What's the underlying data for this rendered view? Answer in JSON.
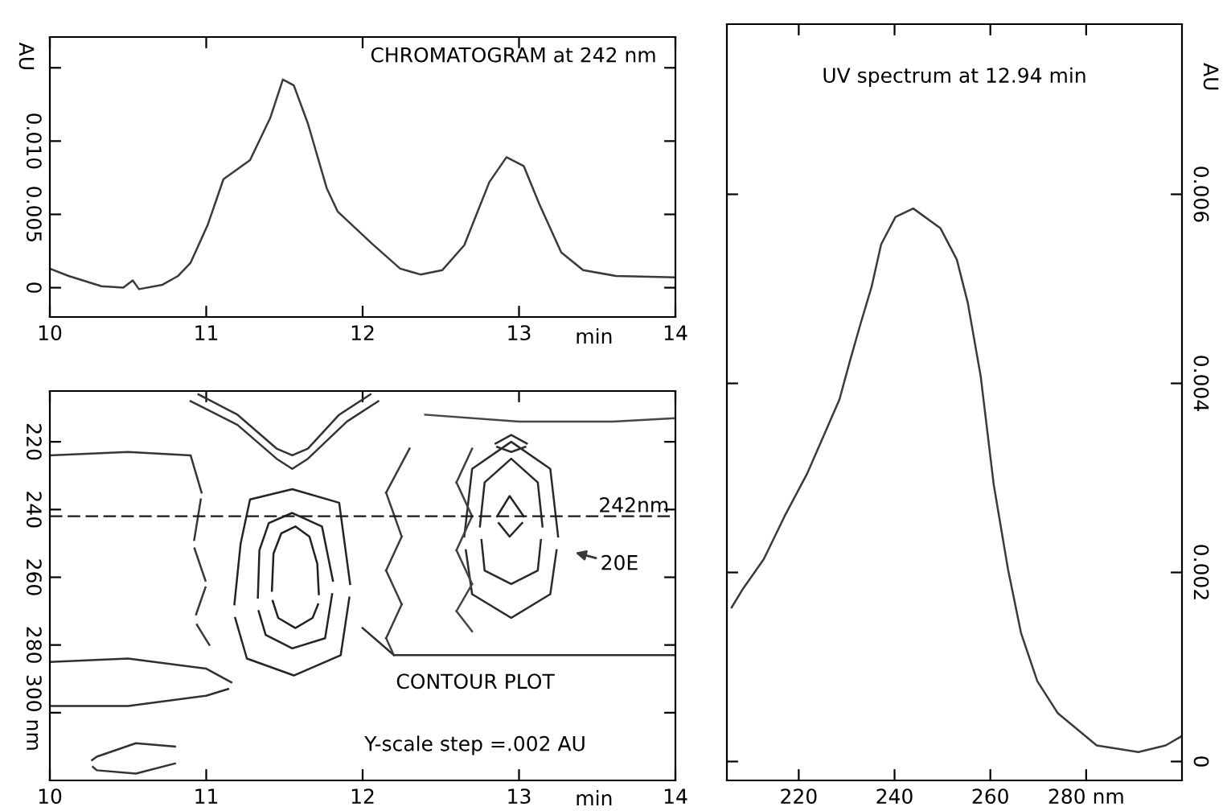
{
  "chart_data": [
    {
      "type": "line",
      "title": "CHROMATOGRAM at 242 nm",
      "xlabel": "min",
      "ylabel": "AU",
      "xlim": [
        10,
        14
      ],
      "xticks": [
        10,
        11,
        12,
        13,
        14
      ],
      "ylim": [
        -0.002,
        0.0171
      ],
      "yticks": [
        0,
        {
          "value": 0.005,
          "label": "0.005"
        },
        {
          "value": 0.01,
          "label": "0.010"
        },
        {
          "value": 0.015,
          "label": null
        }
      ],
      "series": [
        {
          "color": "#3a3a3a",
          "x": [
            10,
            10.12,
            10.33,
            10.47,
            10.53,
            10.57,
            10.72,
            10.82,
            10.9,
            11.01,
            11.11,
            11.28,
            11.41,
            11.49,
            11.56,
            11.65,
            11.77,
            11.84,
            12.06,
            12.24,
            12.37,
            12.51,
            12.65,
            12.81,
            12.92,
            13.03,
            13.13,
            13.27,
            13.41,
            13.62,
            14
          ],
          "values": [
            0.0013,
            0.0008,
            0.0001,
            0,
            0.0005,
            -0.0001,
            0.0002,
            0.0008,
            0.0017,
            0.0043,
            0.0074,
            0.0087,
            0.0116,
            0.0142,
            0.0138,
            0.0112,
            0.0068,
            0.0052,
            0.003,
            0.0013,
            0.0009,
            0.0012,
            0.0029,
            0.0072,
            0.0089,
            0.0083,
            0.0057,
            0.0024,
            0.0012,
            0.0008,
            0.0007
          ]
        }
      ]
    },
    {
      "type": "line",
      "xlabel": "min",
      "xlim": [
        10,
        14
      ],
      "xticks": [
        10,
        11,
        12,
        13,
        14
      ],
      "ylim": [
        320,
        205
      ],
      "yticks": [
        220,
        240,
        260,
        280,
        {
          "value": 300,
          "label": "300 nm"
        }
      ],
      "ref_lines": [
        {
          "axis": "y",
          "value": 242,
          "label": "242nm",
          "line_style": "dashed",
          "color": "#1a1a1a"
        }
      ],
      "annotations": [
        "20E",
        "CONTOUR PLOT",
        "Y-scale step =.002 AU"
      ],
      "series": [
        {
          "color": "#202020",
          "x": [
            11.42,
            11.43,
            11.48,
            11.57,
            11.66,
            11.71,
            11.72
          ],
          "values": [
            264,
            253,
            247,
            245,
            248,
            256,
            265
          ]
        },
        {
          "color": "#212121",
          "x": [
            11.425,
            11.46,
            11.57,
            11.68,
            11.715
          ],
          "values": [
            267,
            272,
            275,
            272,
            268
          ]
        },
        {
          "color": "#222222",
          "x": [
            11.33,
            11.34,
            11.4,
            11.55,
            11.74,
            11.81
          ],
          "values": [
            266,
            252,
            244,
            241,
            245,
            261
          ]
        },
        {
          "color": "#232323",
          "x": [
            11.335,
            11.38,
            11.55,
            11.76,
            11.805
          ],
          "values": [
            270,
            277,
            281,
            278,
            265
          ]
        },
        {
          "color": "#242424",
          "x": [
            11.18,
            11.22,
            11.28,
            11.55,
            11.85,
            11.92
          ],
          "values": [
            268,
            250,
            237,
            234,
            238,
            262
          ]
        },
        {
          "color": "#252525",
          "x": [
            11.185,
            11.26,
            11.56,
            11.86,
            11.915
          ],
          "values": [
            272,
            284,
            289,
            283,
            266
          ]
        },
        {
          "color": "#262626",
          "x": [
            12.86,
            12.94,
            13.03
          ],
          "values": [
            242,
            236,
            242
          ]
        },
        {
          "color": "#272727",
          "x": [
            12.87,
            12.94,
            13.02
          ],
          "values": [
            244,
            248,
            244
          ]
        },
        {
          "color": "#282828",
          "x": [
            12.75,
            12.78,
            12.95,
            13.12,
            13.15
          ],
          "values": [
            245,
            232,
            225,
            232,
            245
          ]
        },
        {
          "color": "#292929",
          "x": [
            12.76,
            12.78,
            12.95,
            13.12,
            13.14
          ],
          "values": [
            249,
            258,
            262,
            258,
            249
          ]
        },
        {
          "color": "#2a2a2a",
          "x": [
            12.65,
            12.7,
            12.95,
            13.2,
            13.25
          ],
          "values": [
            248,
            228,
            220,
            228,
            248
          ]
        },
        {
          "color": "#2b2b2b",
          "x": [
            12.66,
            12.7,
            12.95,
            13.2,
            13.24
          ],
          "values": [
            252,
            265,
            272,
            265,
            252
          ]
        },
        {
          "color": "#2c2c2c",
          "x": [
            12.85,
            12.95,
            13.05
          ],
          "values": [
            220.5,
            218,
            220.5
          ]
        },
        {
          "color": "#2d2d2d",
          "x": [
            12.86,
            12.95,
            13.04
          ],
          "values": [
            221.5,
            223,
            221.5
          ]
        },
        {
          "color": "#2e2e2e",
          "x": [
            12.0,
            12.2,
            13,
            14
          ],
          "values": [
            275,
            283,
            283,
            283
          ]
        },
        {
          "color": "#2f2f2f",
          "x": [
            10,
            10.5,
            11.0,
            11.16
          ],
          "values": [
            285,
            284,
            287,
            291
          ]
        },
        {
          "color": "#303030",
          "x": [
            10,
            10.5,
            11.0,
            11.14
          ],
          "values": [
            298,
            298,
            295,
            293
          ]
        },
        {
          "color": "#313131",
          "x": [
            10.27,
            10.3,
            10.55,
            10.8
          ],
          "values": [
            314,
            313,
            309,
            310
          ]
        },
        {
          "color": "#323232",
          "x": [
            10.275,
            10.3,
            10.55,
            10.8
          ],
          "values": [
            316,
            317,
            318,
            315
          ]
        },
        {
          "color": "#333333",
          "x": [
            10.95,
            11.2,
            11.45,
            11.55,
            11.65,
            11.85,
            12.05
          ],
          "values": [
            206,
            212,
            222,
            224,
            222,
            212,
            206
          ]
        },
        {
          "color": "#343434",
          "x": [
            10.9,
            11.2,
            11.45,
            11.55,
            11.65,
            11.9,
            12.1
          ],
          "values": [
            208,
            215,
            225,
            228,
            225,
            214,
            208
          ]
        },
        {
          "color": "#353535",
          "x": [
            10,
            10.5,
            10.9,
            10.97
          ],
          "values": [
            224,
            223,
            224,
            235
          ]
        },
        {
          "color": "#363636",
          "x": [
            10.923,
            10.965
          ],
          "values": [
            249,
            237
          ]
        },
        {
          "color": "#373737",
          "x": [
            10.925,
            10.995
          ],
          "values": [
            251.5,
            261
          ]
        },
        {
          "color": "#383838",
          "x": [
            10.935,
            10.995
          ],
          "values": [
            271,
            263
          ]
        },
        {
          "color": "#393939",
          "x": [
            10.94,
            11.02
          ],
          "values": [
            274,
            280
          ]
        },
        {
          "color": "#3a3a3a",
          "x": [
            12.15,
            12.3
          ],
          "values": [
            235,
            222
          ]
        },
        {
          "color": "#3b3b3b",
          "x": [
            12.15,
            12.25
          ],
          "values": [
            235,
            248
          ]
        },
        {
          "color": "#3c3c3c",
          "x": [
            12.15,
            12.25
          ],
          "values": [
            258,
            248
          ]
        },
        {
          "color": "#3d3d3d",
          "x": [
            12.15,
            12.25
          ],
          "values": [
            258,
            268
          ]
        },
        {
          "color": "#3e3e3e",
          "x": [
            12.15,
            12.25
          ],
          "values": [
            278,
            268
          ]
        },
        {
          "color": "#3f3f3f",
          "x": [
            12.15,
            12.2
          ],
          "values": [
            278,
            283
          ]
        },
        {
          "color": "#404040",
          "x": [
            12.6,
            12.7
          ],
          "values": [
            232,
            222
          ]
        },
        {
          "color": "#414141",
          "x": [
            12.6,
            12.7
          ],
          "values": [
            232,
            242
          ]
        },
        {
          "color": "#424242",
          "x": [
            12.6,
            12.7
          ],
          "values": [
            252,
            242
          ]
        },
        {
          "color": "#434343",
          "x": [
            12.6,
            12.7
          ],
          "values": [
            252,
            262
          ]
        },
        {
          "color": "#444444",
          "x": [
            12.6,
            12.7
          ],
          "values": [
            270,
            262
          ]
        },
        {
          "color": "#454545",
          "x": [
            12.6,
            12.7
          ],
          "values": [
            270,
            276
          ]
        },
        {
          "color": "#464646",
          "x": [
            12.4,
            13,
            13.6,
            14
          ],
          "values": [
            212,
            214,
            214,
            213
          ]
        }
      ]
    },
    {
      "type": "line",
      "title": "UV spectrum at 12.94 min",
      "ylabel": "AU",
      "xlim": [
        205,
        300
      ],
      "xticks": [
        220,
        240,
        260,
        {
          "value": 280,
          "label": "280 nm"
        }
      ],
      "ylim": [
        -0.0002,
        0.0078
      ],
      "yticks": [
        0,
        {
          "value": 0.002,
          "label": "0.002"
        },
        {
          "value": 0.004,
          "label": "0.004"
        },
        {
          "value": 0.006,
          "label": "0.006"
        }
      ],
      "series": [
        {
          "color": "#3a3a3a",
          "x": [
            206,
            208.4,
            212.7,
            217,
            221.8,
            228.5,
            230.7,
            232.9,
            235.2,
            237.2,
            240.2,
            243.9,
            249.6,
            253,
            255.3,
            258,
            260.7,
            263.7,
            266.4,
            269.8,
            274.1,
            282.2,
            290.9,
            296.6,
            300
          ],
          "values": [
            0.00163,
            0.00183,
            0.00214,
            0.00259,
            0.00305,
            0.00383,
            0.00424,
            0.00463,
            0.00502,
            0.00547,
            0.00576,
            0.00585,
            0.00564,
            0.00531,
            0.00485,
            0.00407,
            0.00293,
            0.00203,
            0.00136,
            0.00085,
            0.00051,
            0.00017,
            0.0001,
            0.00017,
            0.00027
          ]
        }
      ]
    }
  ]
}
